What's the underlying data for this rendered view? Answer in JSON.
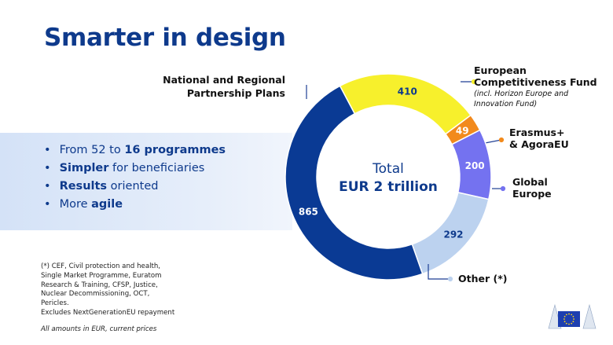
{
  "title": "Smarter in design",
  "bullets": [
    {
      "pre": "From 52 to ",
      "bold": "16 programmes",
      "post": ""
    },
    {
      "pre": "",
      "bold": "Simpler",
      "post": " for beneficiaries"
    },
    {
      "pre": "",
      "bold": "Results",
      "post": " oriented"
    },
    {
      "pre": "More ",
      "bold": "agile",
      "post": ""
    }
  ],
  "footnote_lines": [
    "(*) CEF, Civil protection and health,",
    "Single Market Programme, Euratom",
    "Research & Training, CFSP, Justice,",
    "Nuclear Decommissioning, OCT,",
    "Pericles.",
    "Excludes NextGenerationEU repayment"
  ],
  "amounts_note": "All amounts in EUR, current prices",
  "logo_icon": "eu-flag-logo-icon",
  "colors": {
    "title": "#0e3a8c",
    "leader": "#1f3f94",
    "center": "#0e3a8c"
  },
  "chart_data": {
    "type": "pie",
    "style": "donut",
    "center_label": [
      "Total",
      "EUR 2 trillion"
    ],
    "slices": [
      {
        "label": [
          "European",
          "Competitiveness Fund"
        ],
        "sublabel": [
          "(incl. Horizon Europe and",
          "Innovation Fund)"
        ],
        "value": 410,
        "color": "#f7f02c",
        "value_color": "#0e3a8c"
      },
      {
        "label": [
          "Erasmus+",
          "& AgoraEU"
        ],
        "sublabel": [],
        "value": 49,
        "color": "#f28a1c",
        "value_color": "#ffffff"
      },
      {
        "label": [
          "Global",
          "Europe"
        ],
        "sublabel": [],
        "value": 200,
        "color": "#7472f0",
        "value_color": "#ffffff"
      },
      {
        "label": [
          "Other (*)"
        ],
        "sublabel": [],
        "value": 292,
        "color": "#bcd2ef",
        "value_color": "#0e3a8c"
      },
      {
        "label": [
          "National and Regional",
          "Partnership Plans"
        ],
        "sublabel": [],
        "value": 865,
        "color": "#0a3a94",
        "value_color": "#ffffff"
      }
    ]
  }
}
